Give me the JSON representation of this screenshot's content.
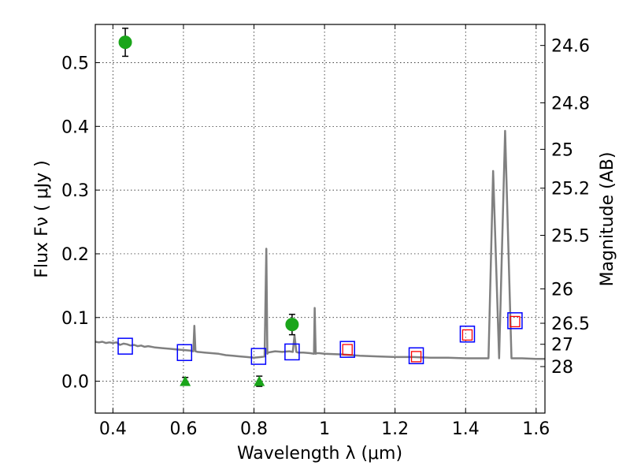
{
  "chart_data": {
    "type": "scatter",
    "xlabel": "Wavelength  λ (μm)",
    "ylabel": "Flux  Fν  ( μJy )",
    "y2label": "Magnitude (AB)",
    "xlim": [
      0.35,
      1.625
    ],
    "ylim": [
      -0.05,
      0.56
    ],
    "x_ticks": [
      0.4,
      0.6,
      0.8,
      1.0,
      1.2,
      1.4,
      1.6
    ],
    "x_tick_labels": [
      "0.4",
      "0.6",
      "0.8",
      "1",
      "1.2",
      "1.4",
      "1.6"
    ],
    "y_ticks": [
      0.0,
      0.1,
      0.2,
      0.3,
      0.4,
      0.5
    ],
    "y_tick_labels": [
      "0.0",
      "0.1",
      "0.2",
      "0.3",
      "0.4",
      "0.5"
    ],
    "y2_ticks": [
      {
        "label": "24.6",
        "flux": 0.527
      },
      {
        "label": "24.8",
        "flux": 0.437
      },
      {
        "label": "25",
        "flux": 0.364
      },
      {
        "label": "25.2",
        "flux": 0.303
      },
      {
        "label": "25.5",
        "flux": 0.229
      },
      {
        "label": "26",
        "flux": 0.145
      },
      {
        "label": "26.5",
        "flux": 0.091
      },
      {
        "label": "27",
        "flux": 0.058
      },
      {
        "label": "28",
        "flux": 0.023
      }
    ],
    "grid": true,
    "grid_style": "dotted",
    "colors": {
      "sed": "#808080",
      "detection": "#1aa51a",
      "upper_limit": "#1aa51a",
      "model_box": "#0000ff",
      "observed_box": "#ff0000",
      "errorbar": "#000000"
    },
    "series": [
      {
        "style": "line",
        "x": [
          0.35,
          0.36,
          0.37,
          0.38,
          0.39,
          0.4,
          0.41,
          0.42,
          0.43,
          0.44,
          0.45,
          0.46,
          0.47,
          0.48,
          0.49,
          0.5,
          0.52,
          0.54,
          0.56,
          0.58,
          0.6,
          0.62,
          0.628,
          0.631,
          0.634,
          0.64,
          0.66,
          0.68,
          0.7,
          0.72,
          0.74,
          0.76,
          0.78,
          0.8,
          0.82,
          0.83,
          0.835,
          0.838,
          0.84,
          0.85,
          0.86,
          0.88,
          0.9,
          0.91,
          0.915,
          0.92,
          0.925,
          0.94,
          0.96,
          0.97,
          0.972,
          0.975,
          0.978,
          0.985,
          1.0,
          1.05,
          1.1,
          1.15,
          1.2,
          1.25,
          1.3,
          1.35,
          1.4,
          1.45,
          1.465,
          1.478,
          1.495,
          1.512,
          1.53,
          1.56,
          1.6,
          1.625
        ],
        "y": [
          0.062,
          0.061,
          0.062,
          0.06,
          0.061,
          0.06,
          0.061,
          0.057,
          0.059,
          0.058,
          0.056,
          0.057,
          0.055,
          0.056,
          0.054,
          0.055,
          0.053,
          0.052,
          0.051,
          0.05,
          0.049,
          0.048,
          0.047,
          0.087,
          0.047,
          0.046,
          0.045,
          0.044,
          0.043,
          0.041,
          0.04,
          0.039,
          0.038,
          0.037,
          0.038,
          0.039,
          0.208,
          0.043,
          0.045,
          0.046,
          0.047,
          0.046,
          0.047,
          0.046,
          0.072,
          0.046,
          0.045,
          0.045,
          0.044,
          0.043,
          0.115,
          0.043,
          0.044,
          0.044,
          0.043,
          0.042,
          0.04,
          0.039,
          0.038,
          0.038,
          0.037,
          0.037,
          0.036,
          0.036,
          0.036,
          0.33,
          0.036,
          0.393,
          0.036,
          0.036,
          0.035,
          0.035
        ]
      },
      {
        "style": "errorbar-point",
        "points": [
          {
            "x": 0.435,
            "y": 0.532,
            "yerr": 0.022
          },
          {
            "x": 0.908,
            "y": 0.089,
            "yerr": 0.016
          }
        ]
      },
      {
        "style": "upper-limit",
        "points": [
          {
            "x": 0.605,
            "y": 0.0,
            "yerr": 0.006
          },
          {
            "x": 0.815,
            "y": 0.0,
            "yerr": 0.008
          }
        ]
      },
      {
        "style": "model-box",
        "points": [
          {
            "x": 0.435,
            "y": 0.055
          },
          {
            "x": 0.603,
            "y": 0.045
          },
          {
            "x": 0.813,
            "y": 0.039
          },
          {
            "x": 0.908,
            "y": 0.046
          },
          {
            "x": 1.065,
            "y": 0.05
          },
          {
            "x": 1.26,
            "y": 0.04
          },
          {
            "x": 1.405,
            "y": 0.074
          },
          {
            "x": 1.54,
            "y": 0.095
          }
        ]
      },
      {
        "style": "observed-box",
        "points": [
          {
            "x": 1.065,
            "y": 0.049
          },
          {
            "x": 1.26,
            "y": 0.038
          },
          {
            "x": 1.405,
            "y": 0.072
          },
          {
            "x": 1.54,
            "y": 0.093
          }
        ]
      }
    ]
  }
}
